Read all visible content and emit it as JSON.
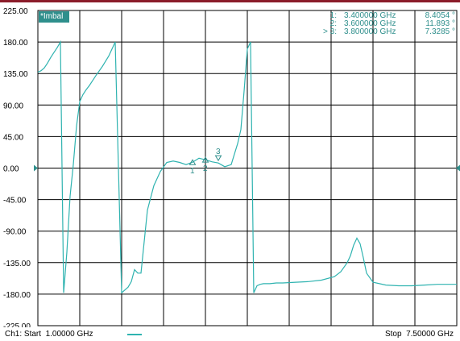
{
  "trace_badge": "*Imbal",
  "footer": {
    "start_text": "Ch1: Start  1.00000 GHz",
    "stop_text": "Stop  7.50000 GHz"
  },
  "markers": [
    {
      "id": "1",
      "prefix": "1:",
      "freq": "3.400000 GHz",
      "value": "8.4054 °"
    },
    {
      "id": "2",
      "prefix": "2:",
      "freq": "3.600000 GHz",
      "value": "11.893 °"
    },
    {
      "id": "3",
      "prefix": "> 3:",
      "freq": "3.800000 GHz",
      "value": "7.3285 °"
    }
  ],
  "colors": {
    "trace": "#2fb3b0",
    "grid": "#000000",
    "marker_text": "#2f8f8c",
    "reference_arrow": "#2f8f8c"
  },
  "chart_data": {
    "type": "line",
    "title": "",
    "xlabel": "",
    "ylabel": "",
    "xlim": [
      1.0,
      7.5
    ],
    "ylim": [
      -225,
      225
    ],
    "y_ticks": [
      "225.00",
      "180.00",
      "135.00",
      "90.00",
      "45.00",
      "0.00",
      "-45.00",
      "-90.00",
      "-135.00",
      "-180.00",
      "-225.00"
    ],
    "grid": true,
    "x_divisions": 10,
    "y_divisions": 10,
    "series": [
      {
        "x": [
          1.0,
          1.05,
          1.1,
          1.15,
          1.2,
          1.25,
          1.3,
          1.35,
          1.4,
          1.45,
          1.5,
          1.55,
          1.6,
          1.65,
          1.7,
          1.75,
          1.8,
          1.85,
          1.9,
          2.0,
          2.1,
          2.2,
          2.3,
          2.4,
          2.45,
          2.5,
          2.55,
          2.6,
          2.7,
          2.8,
          2.9,
          3.0,
          3.1,
          3.2,
          3.3,
          3.4,
          3.5,
          3.6,
          3.7,
          3.8,
          3.9,
          4.0,
          4.05,
          4.1,
          4.15,
          4.2,
          4.25,
          4.3,
          4.35,
          4.4,
          4.45,
          4.5,
          4.6,
          4.7,
          4.8,
          5.0,
          5.2,
          5.4,
          5.6,
          5.7,
          5.8,
          5.85,
          5.9,
          5.95,
          6.0,
          6.05,
          6.1,
          6.2,
          6.4,
          6.6,
          6.8,
          7.0,
          7.2,
          7.5
        ],
        "y": [
          137,
          139,
          143,
          150,
          158,
          165,
          172,
          180,
          -178,
          -120,
          -40,
          5,
          60,
          95,
          105,
          112,
          118,
          125,
          132,
          145,
          160,
          180,
          -178,
          -170,
          -162,
          -145,
          -150,
          -150,
          -60,
          -25,
          -5,
          8,
          10,
          8,
          5,
          8.4,
          14,
          11.9,
          9,
          7.3,
          2,
          5,
          20,
          35,
          55,
          110,
          170,
          180,
          -178,
          -168,
          -166,
          -165,
          -165,
          -164,
          -164,
          -163,
          -162,
          -160,
          -155,
          -148,
          -135,
          -125,
          -110,
          -100,
          -108,
          -128,
          -150,
          -163,
          -167,
          -168,
          -168,
          -167,
          -166,
          -166
        ]
      }
    ],
    "markers": [
      {
        "label": "1",
        "x": 3.4,
        "y": 8.4054,
        "type": "triangle-up"
      },
      {
        "label": "2",
        "x": 3.6,
        "y": 11.893,
        "type": "triangle-up"
      },
      {
        "label": "3",
        "x": 3.8,
        "y": 7.3285,
        "type": "triangle-down"
      }
    ]
  }
}
